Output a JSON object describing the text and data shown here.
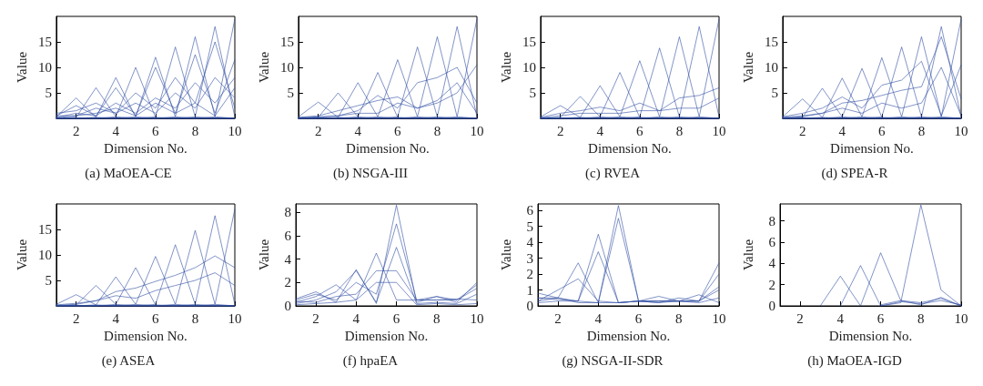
{
  "chart_data": [
    {
      "type": "line",
      "title": "(a) MaOEA-CE",
      "xlabel": "Dimension No.",
      "ylabel": "Value",
      "x": [
        1,
        2,
        3,
        4,
        5,
        6,
        7,
        8,
        9,
        10
      ],
      "xlim": [
        1,
        10
      ],
      "xticks": [
        2,
        4,
        6,
        8,
        10
      ],
      "ylim": [
        0,
        20
      ],
      "yticks": [
        5,
        10,
        15
      ],
      "marker": "none",
      "grid": false,
      "series": [
        {
          "color": "#2f4ea3",
          "values": [
            0.3,
            4,
            0.2,
            0,
            0,
            0,
            0,
            0,
            0,
            0
          ]
        },
        {
          "color": "#2f4ea3",
          "values": [
            0,
            0.2,
            6,
            0.3,
            0,
            0,
            0,
            0,
            0,
            0
          ]
        },
        {
          "color": "#2f4ea3",
          "values": [
            0,
            0,
            0.2,
            8,
            0.3,
            0,
            0,
            0,
            0,
            0
          ]
        },
        {
          "color": "#2f4ea3",
          "values": [
            0,
            0,
            0,
            0.3,
            10,
            0.2,
            0,
            0,
            0,
            0
          ]
        },
        {
          "color": "#2f4ea3",
          "values": [
            0,
            0,
            0,
            0,
            0.3,
            12,
            0.3,
            0,
            0,
            0
          ]
        },
        {
          "color": "#2f4ea3",
          "values": [
            0,
            0,
            0,
            0,
            0,
            0.3,
            14,
            0.3,
            0,
            0
          ]
        },
        {
          "color": "#2f4ea3",
          "values": [
            0,
            0,
            0,
            0,
            0,
            0,
            0.3,
            16,
            0.3,
            0
          ]
        },
        {
          "color": "#2f4ea3",
          "values": [
            0,
            0,
            0,
            0,
            0,
            0,
            0,
            0.3,
            18,
            0.3
          ]
        },
        {
          "color": "#2f4ea3",
          "values": [
            0,
            0,
            0,
            0,
            0,
            0,
            0,
            0,
            0.3,
            19.5
          ]
        },
        {
          "color": "#2f4ea3",
          "values": [
            0.5,
            2.5,
            0.5,
            6,
            0.5,
            10,
            1,
            12.5,
            1,
            11.5
          ]
        },
        {
          "color": "#2f4ea3",
          "values": [
            1,
            1.5,
            3,
            1,
            5,
            2,
            8,
            3,
            15,
            2
          ]
        },
        {
          "color": "#2f4ea3",
          "values": [
            0.2,
            1,
            0.5,
            3,
            1,
            4,
            2,
            7,
            3,
            8
          ]
        },
        {
          "color": "#2f4ea3",
          "values": [
            0.1,
            0.5,
            2,
            1,
            3,
            1,
            5,
            2,
            8,
            4
          ]
        },
        {
          "color": "#2f4ea3",
          "values": [
            0.5,
            0.5,
            1,
            2,
            0.5,
            3,
            1,
            3,
            0.5,
            6
          ]
        }
      ]
    },
    {
      "type": "line",
      "title": "(b) NSGA-III",
      "xlabel": "Dimension No.",
      "ylabel": "Value",
      "x": [
        1,
        2,
        3,
        4,
        5,
        6,
        7,
        8,
        9,
        10
      ],
      "xlim": [
        1,
        10
      ],
      "xticks": [
        2,
        4,
        6,
        8,
        10
      ],
      "ylim": [
        0,
        20
      ],
      "yticks": [
        5,
        10,
        15
      ],
      "marker": "none",
      "grid": false,
      "series": [
        {
          "color": "#2f4ea3",
          "values": [
            0.3,
            3.2,
            0.2,
            0,
            0,
            0,
            0,
            0,
            0,
            0
          ]
        },
        {
          "color": "#2f4ea3",
          "values": [
            0,
            0.2,
            5,
            0.3,
            0,
            0,
            0,
            0,
            0,
            0
          ]
        },
        {
          "color": "#2f4ea3",
          "values": [
            0,
            0,
            0.2,
            7,
            0.3,
            0,
            0,
            0,
            0,
            0
          ]
        },
        {
          "color": "#2f4ea3",
          "values": [
            0,
            0,
            0,
            0.3,
            9,
            0.2,
            0,
            0,
            0,
            0
          ]
        },
        {
          "color": "#2f4ea3",
          "values": [
            0,
            0,
            0,
            0,
            0.3,
            11.5,
            0.3,
            0,
            0,
            0
          ]
        },
        {
          "color": "#2f4ea3",
          "values": [
            0,
            0,
            0,
            0,
            0,
            0.3,
            14,
            0.3,
            0,
            0
          ]
        },
        {
          "color": "#2f4ea3",
          "values": [
            0,
            0,
            0,
            0,
            0,
            0,
            0.3,
            16,
            0.3,
            0
          ]
        },
        {
          "color": "#2f4ea3",
          "values": [
            0,
            0,
            0,
            0,
            0,
            0,
            0,
            0.3,
            18,
            0.3
          ]
        },
        {
          "color": "#2f4ea3",
          "values": [
            0,
            0,
            0,
            0,
            0,
            0,
            0,
            0,
            0.3,
            19.5
          ]
        },
        {
          "color": "#2f4ea3",
          "values": [
            0.2,
            0.5,
            1.5,
            2.5,
            3.5,
            4.2,
            2,
            3.5,
            7,
            1
          ]
        },
        {
          "color": "#2f4ea3",
          "values": [
            0.1,
            0.3,
            0.5,
            1.5,
            4.5,
            2,
            7,
            8,
            10,
            3
          ]
        },
        {
          "color": "#2f4ea3",
          "values": [
            0.1,
            0.2,
            0.5,
            1,
            1,
            3,
            2,
            3,
            5,
            10.5
          ]
        }
      ]
    },
    {
      "type": "line",
      "title": "(c) RVEA",
      "xlabel": "Dimension No.",
      "ylabel": "Value",
      "x": [
        1,
        2,
        3,
        4,
        5,
        6,
        7,
        8,
        9,
        10
      ],
      "xlim": [
        1,
        10
      ],
      "xticks": [
        2,
        4,
        6,
        8,
        10
      ],
      "ylim": [
        0,
        20
      ],
      "yticks": [
        5,
        10,
        15
      ],
      "marker": "none",
      "grid": false,
      "series": [
        {
          "color": "#2f4ea3",
          "values": [
            0.3,
            2.5,
            0.2,
            0,
            0,
            0,
            0,
            0,
            0,
            0
          ]
        },
        {
          "color": "#2f4ea3",
          "values": [
            0,
            0.2,
            4.3,
            0.3,
            0,
            0,
            0,
            0,
            0,
            0
          ]
        },
        {
          "color": "#2f4ea3",
          "values": [
            0,
            0,
            0.2,
            6.4,
            0.3,
            0,
            0,
            0,
            0,
            0
          ]
        },
        {
          "color": "#2f4ea3",
          "values": [
            0,
            0,
            0,
            0.3,
            9,
            0.2,
            0,
            0,
            0,
            0
          ]
        },
        {
          "color": "#2f4ea3",
          "values": [
            0,
            0,
            0,
            0,
            0.3,
            11.3,
            0.3,
            0,
            0,
            0
          ]
        },
        {
          "color": "#2f4ea3",
          "values": [
            0,
            0,
            0,
            0,
            0,
            0.3,
            13.8,
            0.3,
            0,
            0
          ]
        },
        {
          "color": "#2f4ea3",
          "values": [
            0,
            0,
            0,
            0,
            0,
            0,
            0.3,
            16,
            0.3,
            0
          ]
        },
        {
          "color": "#2f4ea3",
          "values": [
            0,
            0,
            0,
            0,
            0,
            0,
            0,
            0.3,
            18,
            0.3
          ]
        },
        {
          "color": "#2f4ea3",
          "values": [
            0,
            0,
            0,
            0,
            0,
            0,
            0,
            0,
            0.3,
            19.5
          ]
        },
        {
          "color": "#2f4ea3",
          "values": [
            0.2,
            1,
            1.5,
            2.2,
            1.5,
            3,
            1.5,
            4,
            4.5,
            6
          ]
        },
        {
          "color": "#2f4ea3",
          "values": [
            0.1,
            0.5,
            1,
            1,
            1,
            1.5,
            1.5,
            2,
            2,
            4
          ]
        }
      ]
    },
    {
      "type": "line",
      "title": "(d) SPEA-R",
      "xlabel": "Dimension No.",
      "ylabel": "Value",
      "x": [
        1,
        2,
        3,
        4,
        5,
        6,
        7,
        8,
        9,
        10
      ],
      "xlim": [
        1,
        10
      ],
      "xticks": [
        2,
        4,
        6,
        8,
        10
      ],
      "ylim": [
        0,
        20
      ],
      "yticks": [
        5,
        10,
        15
      ],
      "marker": "none",
      "grid": false,
      "series": [
        {
          "color": "#2f4ea3",
          "values": [
            0.3,
            3.8,
            0.2,
            0,
            0,
            0,
            0,
            0,
            0,
            0
          ]
        },
        {
          "color": "#2f4ea3",
          "values": [
            0,
            0.2,
            5.9,
            0.3,
            0,
            0,
            0,
            0,
            0,
            0
          ]
        },
        {
          "color": "#2f4ea3",
          "values": [
            0,
            0,
            0.2,
            7.9,
            0.3,
            0,
            0,
            0,
            0,
            0
          ]
        },
        {
          "color": "#2f4ea3",
          "values": [
            0,
            0,
            0,
            0.3,
            9.8,
            0.2,
            0,
            0,
            0,
            0
          ]
        },
        {
          "color": "#2f4ea3",
          "values": [
            0,
            0,
            0,
            0,
            0.3,
            11.9,
            0.3,
            0,
            0,
            0
          ]
        },
        {
          "color": "#2f4ea3",
          "values": [
            0,
            0,
            0,
            0,
            0,
            0.3,
            14,
            0.3,
            0,
            0
          ]
        },
        {
          "color": "#2f4ea3",
          "values": [
            0,
            0,
            0,
            0,
            0,
            0,
            0.3,
            16,
            0.3,
            0
          ]
        },
        {
          "color": "#2f4ea3",
          "values": [
            0,
            0,
            0,
            0,
            0,
            0,
            0,
            0.3,
            18,
            0.3
          ]
        },
        {
          "color": "#2f4ea3",
          "values": [
            0,
            0,
            0,
            0,
            0,
            0,
            0,
            0,
            0.3,
            19.5
          ]
        },
        {
          "color": "#2f4ea3",
          "values": [
            0.3,
            1,
            2,
            4.2,
            2,
            6.5,
            7.5,
            11.2,
            0.5,
            10.5
          ]
        },
        {
          "color": "#2f4ea3",
          "values": [
            0.2,
            0.5,
            1,
            3,
            3.5,
            4.5,
            5.5,
            6.2,
            16,
            3.8
          ]
        },
        {
          "color": "#2f4ea3",
          "values": [
            0.1,
            0.3,
            1,
            2,
            1,
            3,
            2,
            3,
            10,
            0.5
          ]
        }
      ]
    },
    {
      "type": "line",
      "title": "(e) ASEA",
      "xlabel": "Dimension No.",
      "ylabel": "Value",
      "x": [
        1,
        2,
        3,
        4,
        5,
        6,
        7,
        8,
        9,
        10
      ],
      "xlim": [
        1,
        10
      ],
      "xticks": [
        2,
        4,
        6,
        8,
        10
      ],
      "ylim": [
        0,
        20
      ],
      "yticks": [
        5,
        10,
        15
      ],
      "marker": "none",
      "grid": false,
      "series": [
        {
          "color": "#2f4ea3",
          "values": [
            0.3,
            2.2,
            0.2,
            0,
            0,
            0,
            0,
            0,
            0,
            0
          ]
        },
        {
          "color": "#2f4ea3",
          "values": [
            0,
            0.2,
            4,
            0.3,
            0,
            0,
            0,
            0,
            0,
            0
          ]
        },
        {
          "color": "#2f4ea3",
          "values": [
            0,
            0,
            0.2,
            5.7,
            0.3,
            0,
            0,
            0,
            0,
            0
          ]
        },
        {
          "color": "#2f4ea3",
          "values": [
            0,
            0,
            0,
            0.3,
            7.5,
            0.2,
            0,
            0,
            0,
            0
          ]
        },
        {
          "color": "#2f4ea3",
          "values": [
            0,
            0,
            0,
            0,
            0.3,
            9.7,
            0.3,
            0,
            0,
            0
          ]
        },
        {
          "color": "#2f4ea3",
          "values": [
            0,
            0,
            0,
            0,
            0,
            0.3,
            12,
            0.3,
            0,
            0
          ]
        },
        {
          "color": "#2f4ea3",
          "values": [
            0,
            0,
            0,
            0,
            0,
            0,
            0.3,
            14.8,
            0.3,
            0
          ]
        },
        {
          "color": "#2f4ea3",
          "values": [
            0,
            0,
            0,
            0,
            0,
            0,
            0,
            0.3,
            17.7,
            0.3
          ]
        },
        {
          "color": "#2f4ea3",
          "values": [
            0,
            0,
            0,
            0,
            0,
            0,
            0,
            0,
            0.3,
            19
          ]
        },
        {
          "color": "#2f4ea3",
          "values": [
            0.2,
            0.5,
            1,
            2.8,
            3.5,
            4.8,
            6,
            7.5,
            9.8,
            7.5
          ]
        },
        {
          "color": "#2f4ea3",
          "values": [
            0.1,
            0.3,
            1,
            2,
            1.5,
            3,
            4,
            5,
            6.5,
            4
          ]
        }
      ]
    },
    {
      "type": "line",
      "title": "(f) hpaEA",
      "xlabel": "Dimension No.",
      "ylabel": "Value",
      "x": [
        1,
        2,
        3,
        4,
        5,
        6,
        7,
        8,
        9,
        10
      ],
      "xlim": [
        1,
        10
      ],
      "xticks": [
        2,
        4,
        6,
        8,
        10
      ],
      "ylim": [
        0,
        8.7
      ],
      "yticks": [
        0,
        2,
        4,
        6,
        8
      ],
      "marker": "none",
      "grid": false,
      "series": [
        {
          "color": "#2f4ea3",
          "values": [
            0.6,
            1.2,
            0.3,
            3.1,
            0.2,
            8.6,
            0.3,
            0.8,
            0.3,
            2
          ]
        },
        {
          "color": "#2f4ea3",
          "values": [
            0.3,
            0.8,
            1.8,
            0.5,
            4.5,
            0.5,
            0.5,
            0.5,
            0.5,
            1.5
          ]
        },
        {
          "color": "#2f4ea3",
          "values": [
            0.5,
            1,
            0.5,
            2,
            1,
            7,
            0.5,
            0.8,
            0.5,
            1.8
          ]
        },
        {
          "color": "#2f4ea3",
          "values": [
            0.2,
            0.5,
            1.2,
            3,
            0.3,
            5,
            0.2,
            0.3,
            0.2,
            1
          ]
        },
        {
          "color": "#2f4ea3",
          "values": [
            0.4,
            0.3,
            0.8,
            1,
            3,
            3,
            0.5,
            0.5,
            0.6,
            0.5
          ]
        },
        {
          "color": "#2f4ea3",
          "values": [
            0.1,
            0.2,
            0.3,
            0.5,
            2,
            2,
            0.1,
            0.2,
            0.1,
            0.2
          ]
        }
      ]
    },
    {
      "type": "line",
      "title": "(g) NSGA-II-SDR",
      "xlabel": "Dimension No.",
      "ylabel": "Value",
      "x": [
        1,
        2,
        3,
        4,
        5,
        6,
        7,
        8,
        9,
        10
      ],
      "xlim": [
        1,
        10
      ],
      "xticks": [
        2,
        4,
        6,
        8,
        10
      ],
      "ylim": [
        0,
        6.4
      ],
      "yticks": [
        0,
        1,
        2,
        3,
        4,
        5,
        6
      ],
      "marker": "none",
      "grid": false,
      "series": [
        {
          "color": "#2f4ea3",
          "values": [
            0.8,
            0.5,
            2.7,
            0.2,
            0.2,
            0.3,
            0.3,
            0.3,
            0.3,
            2.7
          ]
        },
        {
          "color": "#2f4ea3",
          "values": [
            0.5,
            0.4,
            0.3,
            4.5,
            0.2,
            0.3,
            0.3,
            0.3,
            0.3,
            2
          ]
        },
        {
          "color": "#2f4ea3",
          "values": [
            0.3,
            0.5,
            0.2,
            0.2,
            6.3,
            0.3,
            0.3,
            0.3,
            0.3,
            1
          ]
        },
        {
          "color": "#2f4ea3",
          "values": [
            0.3,
            1,
            1.7,
            0.3,
            0.2,
            0.3,
            0.6,
            0.3,
            0.7,
            0.2
          ]
        },
        {
          "color": "#2f4ea3",
          "values": [
            0.2,
            0.3,
            0.3,
            3.4,
            0.2,
            0.3,
            0.2,
            0.5,
            0.3,
            1.2
          ]
        },
        {
          "color": "#2f4ea3",
          "values": [
            0.5,
            0.5,
            0.3,
            0.2,
            5.5,
            0.3,
            0.2,
            0.3,
            0.2,
            0.5
          ]
        }
      ]
    },
    {
      "type": "line",
      "title": "(h) MaOEA-IGD",
      "xlabel": "Dimension No.",
      "ylabel": "Value",
      "xlim": [
        1,
        10
      ],
      "xticks": [
        2,
        4,
        6,
        8,
        10
      ],
      "ylim": [
        0,
        9.6
      ],
      "yticks": [
        0,
        2,
        4,
        6,
        8
      ],
      "marker": "none",
      "grid": false,
      "series": [
        {
          "color": "#2f4ea3",
          "x": [
            3,
            4,
            5
          ],
          "values": [
            0,
            2.8,
            0
          ]
        },
        {
          "color": "#2f4ea3",
          "x": [
            4,
            5,
            6,
            7,
            8,
            9,
            10
          ],
          "values": [
            0,
            3.8,
            0,
            0.4,
            0.2,
            0.5,
            0.1
          ]
        },
        {
          "color": "#2f4ea3",
          "x": [
            5,
            6,
            7,
            8,
            9,
            10
          ],
          "values": [
            0,
            5,
            0.5,
            0.1,
            0.8,
            0
          ]
        },
        {
          "color": "#2f4ea3",
          "x": [
            6,
            7,
            8,
            9,
            10
          ],
          "values": [
            0,
            0.3,
            9.5,
            1.5,
            0
          ]
        },
        {
          "color": "#2f4ea3",
          "x": [
            6,
            7,
            8,
            9,
            10
          ],
          "values": [
            0.1,
            0.5,
            0.3,
            0.7,
            0
          ]
        }
      ]
    }
  ]
}
